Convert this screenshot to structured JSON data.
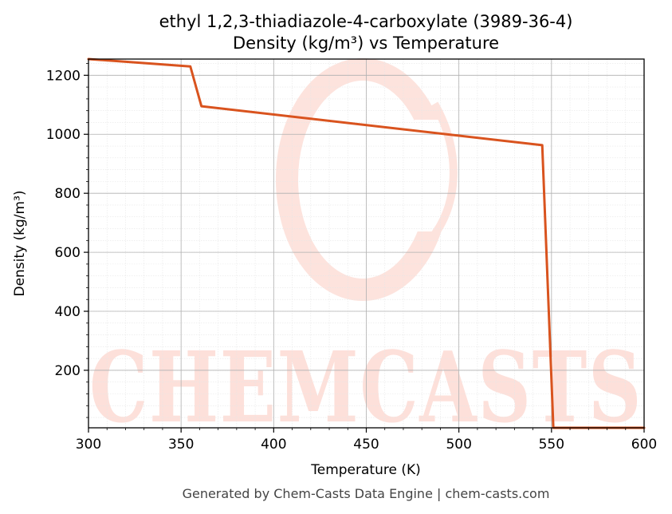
{
  "chart_data": {
    "type": "line",
    "title_line1": "ethyl 1,2,3-thiadiazole-4-carboxylate (3989-36-4)",
    "title_line2": "Density (kg/m³) vs Temperature",
    "xlabel": "Temperature (K)",
    "ylabel": "Density (kg/m³)",
    "xlim": [
      300,
      600
    ],
    "ylim": [
      5,
      1255
    ],
    "xticks": [
      300,
      350,
      400,
      450,
      500,
      550,
      600
    ],
    "yticks": [
      200,
      400,
      600,
      800,
      1000,
      1200
    ],
    "grid": true,
    "series": [
      {
        "color": "#d9531e",
        "x": [
          300,
          355,
          361,
          545,
          551,
          600
        ],
        "y": [
          1255,
          1230,
          1095,
          963,
          5,
          5
        ]
      }
    ]
  },
  "watermark": {
    "text": "CHEMCASTS",
    "color": "#fde0da"
  },
  "footer": "Generated by Chem-Casts Data Engine | chem-casts.com"
}
